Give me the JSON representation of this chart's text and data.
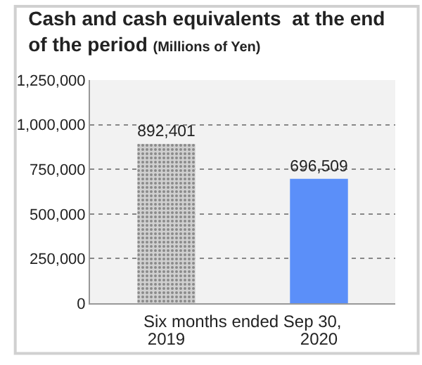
{
  "chart_data": {
    "type": "bar",
    "title": "Cash and cash equivalents  at the end of the period",
    "subtitle": "(Millions of Yen)",
    "xlabel": "Six months ended Sep 30,",
    "categories": [
      "2019",
      "2020"
    ],
    "values": [
      892401,
      696509
    ],
    "value_labels": [
      "892,401",
      "696,509"
    ],
    "colors": [
      "#d0d0d0",
      "#5b8ff9"
    ],
    "ylim": [
      0,
      1250000
    ],
    "yticks": [
      {
        "value": 0,
        "label": "0"
      },
      {
        "value": 250000,
        "label": "250,000"
      },
      {
        "value": 500000,
        "label": "500,000"
      },
      {
        "value": 750000,
        "label": "750,000"
      },
      {
        "value": 1000000,
        "label": "1,000,000"
      },
      {
        "value": 1250000,
        "label": "1,250,000"
      }
    ],
    "grid": "y",
    "legend": false
  }
}
